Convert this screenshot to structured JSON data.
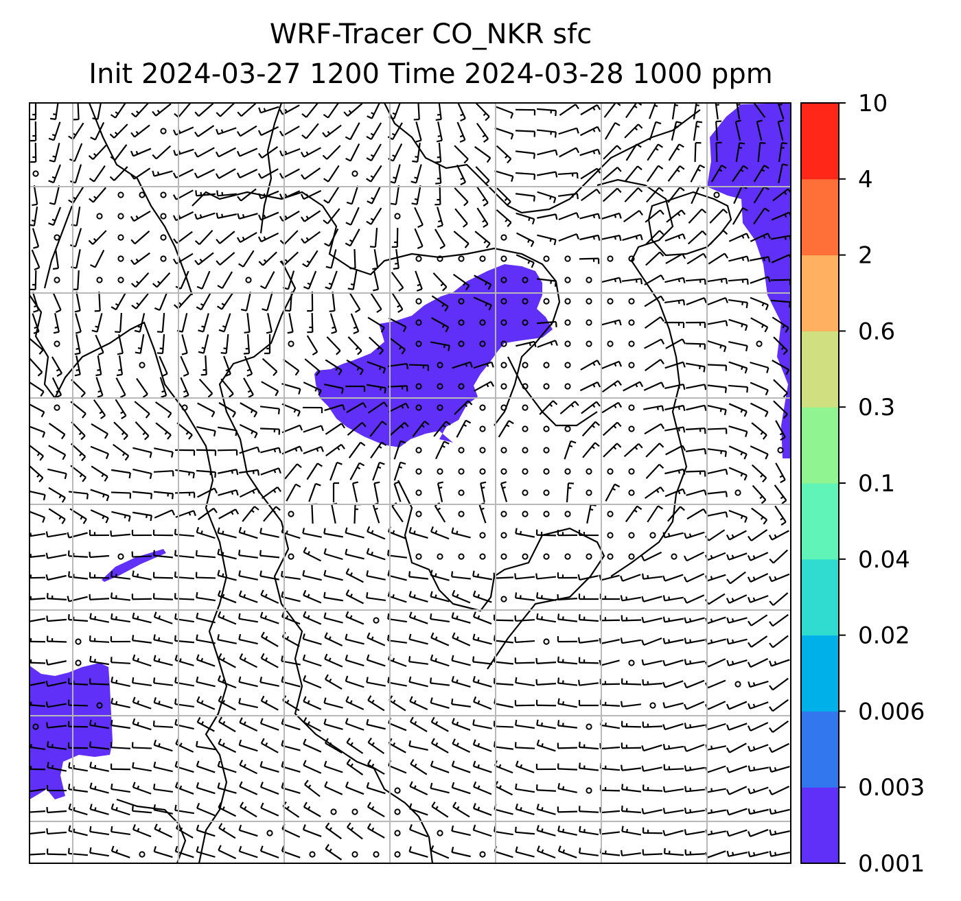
{
  "title": {
    "line1": "WRF-Tracer CO_NKR sfc",
    "line2": "Init 2024-03-27 1200 Time 2024-03-28 1000 ppm"
  },
  "colorbar": {
    "levels": [
      "0.001",
      "0.003",
      "0.006",
      "0.02",
      "0.04",
      "0.1",
      "0.3",
      "0.6",
      "2",
      "4",
      "10"
    ],
    "colors": [
      "#6030f8",
      "#3377ee",
      "#00b0e8",
      "#30dcd0",
      "#60f4b8",
      "#90f490",
      "#d0e080",
      "#ffb060",
      "#ff7038",
      "#ff2818"
    ]
  },
  "map": {
    "plume_color": "#6030f8",
    "grid_color": "#b8b8b8"
  }
}
